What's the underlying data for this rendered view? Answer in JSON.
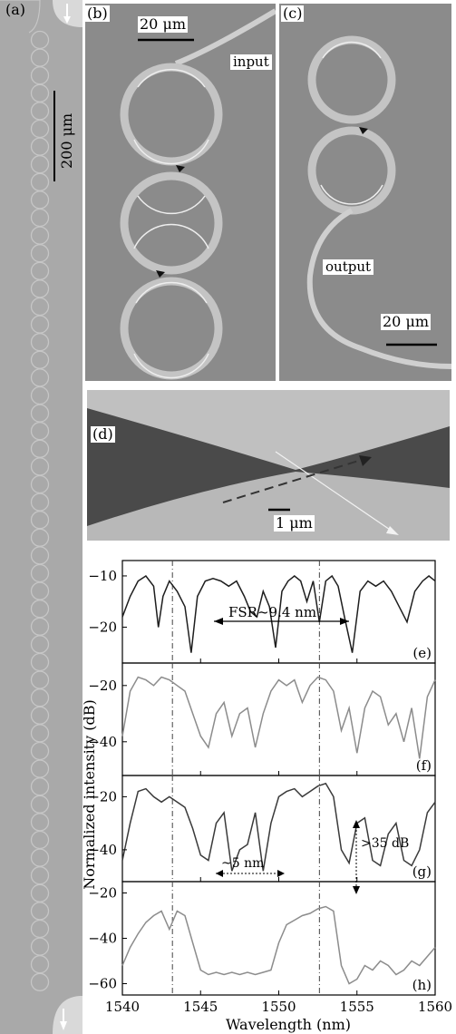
{
  "panels": {
    "a": {
      "label": "(a)",
      "scale": "200 μm"
    },
    "b": {
      "label": "(b)",
      "scale": "20 μm",
      "port": "input"
    },
    "c": {
      "label": "(c)",
      "scale": "20 μm",
      "port": "output"
    },
    "d": {
      "label": "(d)",
      "scale": "1 μm"
    }
  },
  "colors": {
    "sem_gray": "#8a8a8a",
    "ring": "#c8c8c8",
    "trace_dark": "#222222",
    "trace_light": "#8c8c8c"
  },
  "chart_data": {
    "type": "line",
    "ylabel": "Normalized intensity (dB)",
    "xlabel": "Wavelength (nm)",
    "xlim": [
      1540,
      1560
    ],
    "xticks": [
      "1540",
      "1545",
      "1550",
      "1555",
      "1560"
    ],
    "vlines": [
      1543.2,
      1552.6
    ],
    "subplots": [
      {
        "label": "(e)",
        "ylim": [
          -27,
          -7
        ],
        "yticks": [
          "-10",
          "-20"
        ],
        "tick_vals": [
          -10,
          -20
        ],
        "color": "#1e1e1e",
        "annotation": "FSR~9.4 nm",
        "x": [
          1540,
          1540.5,
          1541,
          1541.5,
          1542,
          1542.3,
          1542.6,
          1543,
          1543.5,
          1544,
          1544.4,
          1544.8,
          1545.3,
          1545.8,
          1546.3,
          1546.8,
          1547.3,
          1547.8,
          1548.2,
          1548.6,
          1549,
          1549.4,
          1549.8,
          1550.2,
          1550.6,
          1551,
          1551.4,
          1551.8,
          1552.2,
          1552.6,
          1553,
          1553.4,
          1553.8,
          1554.2,
          1554.7,
          1555.2,
          1555.7,
          1556.2,
          1556.7,
          1557.2,
          1557.7,
          1558.2,
          1558.7,
          1559.2,
          1559.6,
          1560
        ],
        "y": [
          -18,
          -14,
          -11,
          -10,
          -12,
          -20,
          -14,
          -11,
          -13,
          -16,
          -25,
          -14,
          -11,
          -10.5,
          -11,
          -12,
          -11,
          -14,
          -17,
          -18,
          -13,
          -16,
          -24,
          -13,
          -11,
          -10,
          -11,
          -15,
          -11,
          -19,
          -11,
          -10,
          -12,
          -18,
          -25,
          -13,
          -11,
          -12,
          -11,
          -13,
          -16,
          -19,
          -13,
          -11,
          -10,
          -11
        ]
      },
      {
        "label": "(f)",
        "ylim": [
          -52,
          -12
        ],
        "yticks": [
          "-20",
          "-40"
        ],
        "tick_vals": [
          -20,
          -40
        ],
        "color": "#8c8c8c",
        "x": [
          1540,
          1540.5,
          1541,
          1541.5,
          1542,
          1542.5,
          1543,
          1543.5,
          1544,
          1544.5,
          1545,
          1545.5,
          1546,
          1546.5,
          1547,
          1547.5,
          1548,
          1548.5,
          1549,
          1549.5,
          1550,
          1550.5,
          1551,
          1551.5,
          1552,
          1552.5,
          1553,
          1553.5,
          1554,
          1554.5,
          1555,
          1555.5,
          1556,
          1556.5,
          1557,
          1557.5,
          1558,
          1558.5,
          1559,
          1559.5,
          1560
        ],
        "y": [
          -38,
          -22,
          -17,
          -18,
          -20,
          -17,
          -18,
          -20,
          -22,
          -30,
          -38,
          -42,
          -30,
          -26,
          -38,
          -30,
          -28,
          -42,
          -30,
          -22,
          -18,
          -20,
          -18,
          -26,
          -20,
          -17,
          -18,
          -22,
          -36,
          -28,
          -44,
          -28,
          -22,
          -24,
          -34,
          -30,
          -40,
          -28,
          -46,
          -24,
          -18
        ]
      },
      {
        "label": "(g)",
        "ylim": [
          -52,
          -12
        ],
        "yticks": [
          "-20",
          "-40"
        ],
        "tick_vals": [
          -20,
          -40
        ],
        "color": "#3a3a3a",
        "x": [
          1540,
          1540.5,
          1541,
          1541.5,
          1542,
          1542.5,
          1543,
          1543.5,
          1544,
          1544.5,
          1545,
          1545.5,
          1546,
          1546.5,
          1547,
          1547.5,
          1548,
          1548.5,
          1549,
          1549.5,
          1550,
          1550.5,
          1551,
          1551.5,
          1552,
          1552.5,
          1553,
          1553.5,
          1554,
          1554.5,
          1555,
          1555.5,
          1556,
          1556.5,
          1557,
          1557.5,
          1558,
          1558.5,
          1559,
          1559.5,
          1560
        ],
        "y": [
          -44,
          -30,
          -18,
          -17,
          -20,
          -22,
          -20,
          -22,
          -24,
          -32,
          -42,
          -44,
          -30,
          -26,
          -48,
          -40,
          -38,
          -26,
          -48,
          -30,
          -20,
          -18,
          -17,
          -20,
          -18,
          -16,
          -15,
          -20,
          -40,
          -45,
          -30,
          -28,
          -44,
          -46,
          -34,
          -30,
          -44,
          -46,
          -40,
          -26,
          -22
        ]
      },
      {
        "label": "(h)",
        "ylim": [
          -65,
          -15
        ],
        "yticks": [
          "-20",
          "-40",
          "-60"
        ],
        "tick_vals": [
          -20,
          -40,
          -60
        ],
        "color": "#8c8c8c",
        "annotations": [
          "~5 nm",
          ">35 dB"
        ],
        "x": [
          1540,
          1540.5,
          1541,
          1541.5,
          1542,
          1542.5,
          1543,
          1543.5,
          1544,
          1544.5,
          1545,
          1545.5,
          1546,
          1546.5,
          1547,
          1547.5,
          1548,
          1548.5,
          1549,
          1549.5,
          1550,
          1550.5,
          1551,
          1551.5,
          1552,
          1552.5,
          1553,
          1553.5,
          1554,
          1554.5,
          1555,
          1555.5,
          1556,
          1556.5,
          1557,
          1557.5,
          1558,
          1558.5,
          1559,
          1559.5,
          1560
        ],
        "y": [
          -52,
          -44,
          -38,
          -33,
          -30,
          -28,
          -36,
          -28,
          -30,
          -42,
          -54,
          -56,
          -55,
          -56,
          -55,
          -56,
          -55,
          -56,
          -55,
          -54,
          -42,
          -34,
          -32,
          -30,
          -29,
          -27,
          -26,
          -28,
          -52,
          -60,
          -58,
          -52,
          -54,
          -50,
          -52,
          -56,
          -54,
          -50,
          -52,
          -48,
          -44
        ]
      }
    ]
  }
}
